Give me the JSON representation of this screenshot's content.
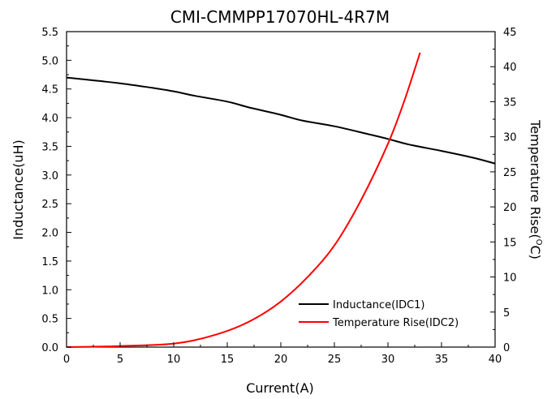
{
  "chart_data": {
    "type": "line",
    "title": "CMI-CMMPP17070HL-4R7M",
    "xlabel": "Current(A)",
    "ylabel_left": "Inductance(uH)",
    "ylabel_right": "Temperature Rise(",
    "ylabel_right_sup": "O",
    "ylabel_right_suffix": "C)",
    "xlim": [
      0,
      40
    ],
    "ylim_left": [
      0,
      5.5
    ],
    "ylim_right": [
      0,
      45
    ],
    "x_ticks": [
      "0",
      "5",
      "10",
      "15",
      "20",
      "25",
      "30",
      "35",
      "40"
    ],
    "y_left_ticks": [
      "0.0",
      "0.5",
      "1.0",
      "1.5",
      "2.0",
      "2.5",
      "3.0",
      "3.5",
      "4.0",
      "4.5",
      "5.0",
      "5.5"
    ],
    "y_right_ticks": [
      "0",
      "5",
      "10",
      "15",
      "20",
      "25",
      "30",
      "35",
      "40",
      "45"
    ],
    "grid": false,
    "legend_position": "lower-right",
    "series": [
      {
        "name": "Inductance(IDC1)",
        "axis": "left",
        "color": "#000000",
        "x": [
          0,
          2,
          5,
          8,
          10,
          12,
          15,
          17,
          20,
          22,
          25,
          28,
          30,
          32,
          35,
          38,
          40
        ],
        "y": [
          4.7,
          4.66,
          4.6,
          4.52,
          4.46,
          4.38,
          4.28,
          4.18,
          4.05,
          3.95,
          3.85,
          3.72,
          3.63,
          3.53,
          3.42,
          3.3,
          3.2
        ]
      },
      {
        "name": "Temperature Rise(IDC2)",
        "axis": "right",
        "color": "#ff0000",
        "x": [
          0,
          2,
          5,
          8,
          10,
          12,
          15,
          17.5,
          20,
          22.5,
          25,
          27.5,
          30,
          31.5,
          33
        ],
        "y": [
          0,
          0.05,
          0.15,
          0.3,
          0.5,
          1.0,
          2.3,
          4.0,
          6.5,
          10.0,
          14.5,
          21.0,
          29.0,
          35.0,
          42.0
        ]
      }
    ]
  }
}
